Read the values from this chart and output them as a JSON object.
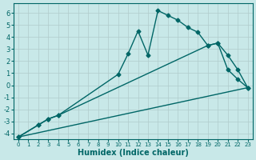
{
  "xlabel": "Humidex (Indice chaleur)",
  "bg_color": "#c8e8e8",
  "grid_color": "#b0cccc",
  "line_color": "#006666",
  "xlim": [
    -0.5,
    23.5
  ],
  "ylim": [
    -4.5,
    6.8
  ],
  "xticks": [
    0,
    1,
    2,
    3,
    4,
    5,
    6,
    7,
    8,
    9,
    10,
    11,
    12,
    13,
    14,
    15,
    16,
    17,
    18,
    19,
    20,
    21,
    22,
    23
  ],
  "yticks": [
    -4,
    -3,
    -2,
    -1,
    0,
    1,
    2,
    3,
    4,
    5,
    6
  ],
  "series": [
    {
      "x": [
        0,
        2,
        3,
        4,
        10,
        11,
        12,
        13,
        14,
        15,
        16,
        17,
        18,
        19,
        20,
        21,
        22,
        23
      ],
      "y": [
        -4.3,
        -3.3,
        -2.8,
        -2.5,
        0.9,
        2.6,
        4.5,
        2.5,
        6.2,
        5.8,
        5.4,
        4.8,
        4.4,
        3.3,
        3.5,
        2.5,
        1.3,
        -0.2
      ],
      "marker": "D",
      "markersize": 2.5,
      "linewidth": 1.0
    },
    {
      "x": [
        0,
        2,
        3,
        4,
        19,
        20,
        21,
        22,
        23
      ],
      "y": [
        -4.3,
        -3.3,
        -2.8,
        -2.5,
        3.3,
        3.5,
        1.3,
        0.5,
        -0.2
      ],
      "marker": "D",
      "markersize": 2.5,
      "linewidth": 1.0
    },
    {
      "x": [
        0,
        23
      ],
      "y": [
        -4.3,
        -0.2
      ],
      "marker": null,
      "markersize": 0,
      "linewidth": 1.0
    }
  ]
}
